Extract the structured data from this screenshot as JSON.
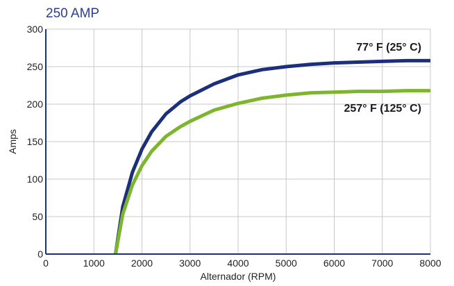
{
  "chart_data": {
    "type": "line",
    "title": "250 AMP",
    "xlabel": "Alternador (RPM)",
    "ylabel": "Amps",
    "xlim": [
      0,
      8000
    ],
    "ylim": [
      0,
      300
    ],
    "xticks": [
      0,
      1000,
      2000,
      3000,
      4000,
      5000,
      6000,
      7000,
      8000
    ],
    "yticks": [
      0,
      50,
      100,
      150,
      200,
      250,
      300
    ],
    "grid": true,
    "series": [
      {
        "name": "77° F (25° C)",
        "color": "#1c2f7a",
        "x": [
          1450,
          1600,
          1800,
          2000,
          2200,
          2500,
          2800,
          3000,
          3500,
          4000,
          4500,
          5000,
          5500,
          6000,
          6500,
          7000,
          7500,
          8000
        ],
        "y": [
          0,
          63,
          109,
          140,
          163,
          187,
          203,
          211,
          227,
          239,
          246,
          250,
          253,
          255,
          256,
          257,
          258,
          258
        ]
      },
      {
        "name": "257° F (125° C)",
        "color": "#7db52e",
        "x": [
          1450,
          1600,
          1800,
          2000,
          2200,
          2500,
          2800,
          3000,
          3500,
          4000,
          4500,
          5000,
          5500,
          6000,
          6500,
          7000,
          7500,
          8000
        ],
        "y": [
          0,
          53,
          92,
          118,
          137,
          157,
          170,
          177,
          192,
          201,
          208,
          212,
          215,
          216,
          217,
          217,
          218,
          218
        ]
      }
    ]
  },
  "colors": {
    "title": "#2c3e8c",
    "grid": "#c8c8c8",
    "axis": "#1c2f7a",
    "tick_text": "#222222"
  }
}
